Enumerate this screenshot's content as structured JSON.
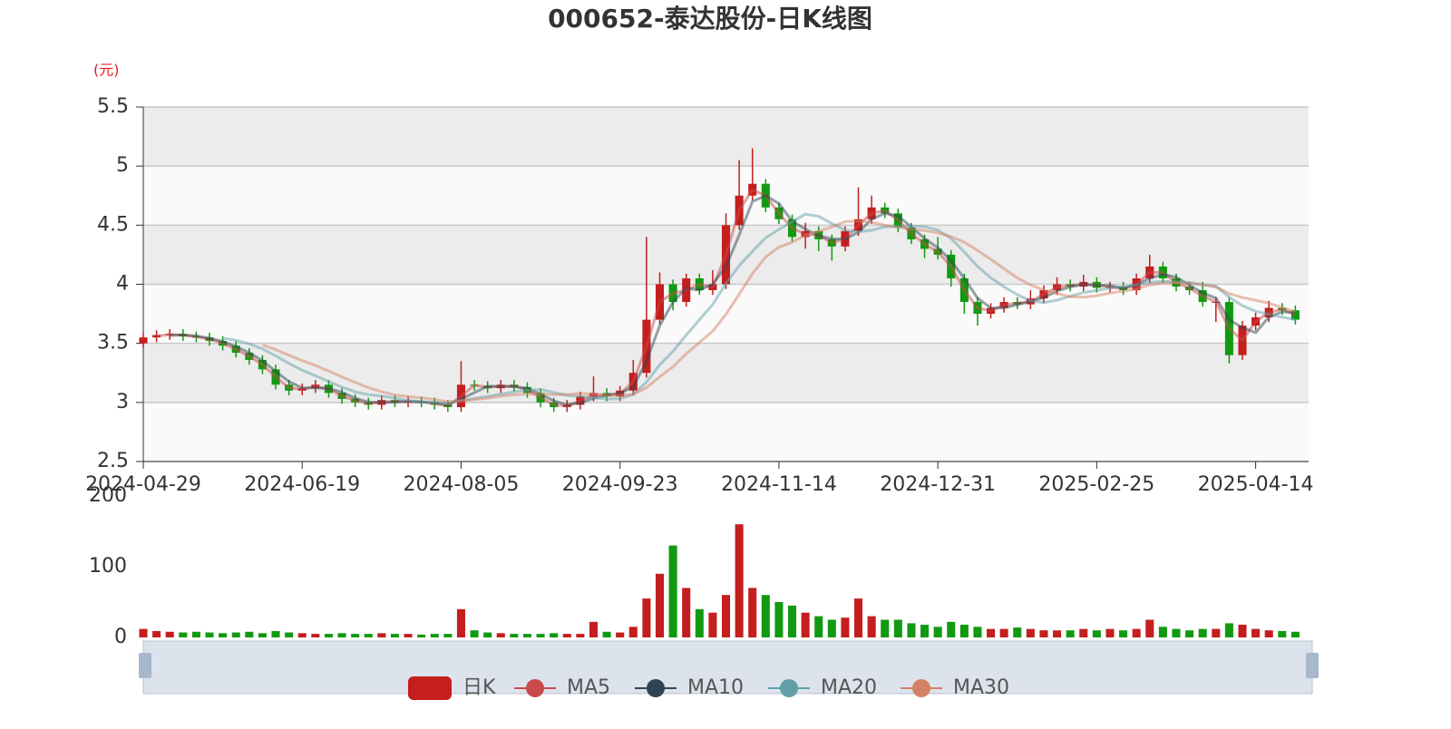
{
  "chart_data": {
    "type": "candlestick",
    "title": "000652-泰达股份-日K线图",
    "y_unit": "(元)",
    "categories": [
      "2024-04-29",
      null,
      null,
      null,
      null,
      null,
      null,
      null,
      null,
      null,
      null,
      null,
      "2024-06-19",
      null,
      null,
      null,
      null,
      null,
      null,
      null,
      null,
      null,
      null,
      null,
      "2024-08-05",
      null,
      null,
      null,
      null,
      null,
      null,
      null,
      null,
      null,
      null,
      null,
      "2024-09-23",
      null,
      null,
      null,
      null,
      null,
      null,
      null,
      null,
      null,
      null,
      null,
      "2024-11-14",
      null,
      null,
      null,
      null,
      null,
      null,
      null,
      null,
      null,
      null,
      null,
      "2024-12-31",
      null,
      null,
      null,
      null,
      null,
      null,
      null,
      null,
      null,
      null,
      null,
      "2025-02-25",
      null,
      null,
      null,
      null,
      null,
      null,
      null,
      null,
      null,
      null,
      null,
      "2025-04-14",
      null,
      null,
      null
    ],
    "ylim": [
      2.5,
      5.5
    ],
    "yticks": [
      2.5,
      3,
      3.5,
      4,
      4.5,
      5,
      5.5
    ],
    "grid": true,
    "series": [
      {
        "name": "日K",
        "color": "#c41e1e",
        "down_color": "#119a11",
        "open": [
          3.5,
          3.55,
          3.57,
          3.58,
          3.56,
          3.55,
          3.52,
          3.48,
          3.42,
          3.36,
          3.28,
          3.15,
          3.1,
          3.12,
          3.15,
          3.08,
          3.03,
          3.0,
          2.98,
          3.02,
          3.0,
          3.01,
          3.0,
          2.98,
          2.96,
          3.15,
          3.14,
          3.12,
          3.15,
          3.13,
          3.08,
          3.0,
          2.96,
          2.98,
          3.05,
          3.08,
          3.05,
          3.1,
          3.25,
          3.7,
          4.0,
          3.85,
          4.05,
          3.95,
          4.0,
          4.5,
          4.75,
          4.85,
          4.65,
          4.55,
          4.4,
          4.45,
          4.38,
          4.32,
          4.45,
          4.55,
          4.65,
          4.6,
          4.48,
          4.38,
          4.3,
          4.25,
          4.05,
          3.85,
          3.75,
          3.8,
          3.85,
          3.83,
          3.88,
          3.95,
          4.0,
          3.98,
          4.02,
          3.97,
          3.98,
          3.95,
          4.05,
          4.15,
          4.05,
          3.98,
          3.95,
          3.85,
          3.85,
          3.4,
          3.65,
          3.72,
          3.8,
          3.78
        ],
        "close": [
          3.55,
          3.57,
          3.58,
          3.56,
          3.55,
          3.52,
          3.48,
          3.42,
          3.36,
          3.28,
          3.15,
          3.1,
          3.12,
          3.15,
          3.08,
          3.03,
          3.0,
          2.98,
          3.02,
          3.0,
          3.01,
          3.0,
          2.98,
          2.96,
          3.15,
          3.14,
          3.12,
          3.15,
          3.13,
          3.08,
          3.0,
          2.96,
          2.98,
          3.05,
          3.08,
          3.05,
          3.1,
          3.25,
          3.7,
          4.0,
          3.85,
          4.05,
          3.95,
          4.0,
          4.5,
          4.75,
          4.85,
          4.65,
          4.55,
          4.4,
          4.45,
          4.38,
          4.32,
          4.45,
          4.55,
          4.65,
          4.6,
          4.48,
          4.38,
          4.3,
          4.25,
          4.05,
          3.85,
          3.75,
          3.8,
          3.85,
          3.83,
          3.88,
          3.95,
          4.0,
          3.98,
          4.02,
          3.97,
          3.98,
          3.95,
          4.05,
          4.15,
          4.05,
          3.98,
          3.95,
          3.85,
          3.85,
          3.4,
          3.65,
          3.72,
          3.8,
          3.78,
          3.7
        ],
        "low": [
          3.46,
          3.51,
          3.53,
          3.52,
          3.51,
          3.48,
          3.44,
          3.38,
          3.32,
          3.24,
          3.11,
          3.06,
          3.06,
          3.08,
          3.04,
          2.99,
          2.96,
          2.94,
          2.94,
          2.96,
          2.96,
          2.96,
          2.94,
          2.92,
          2.92,
          3.1,
          3.08,
          3.08,
          3.09,
          3.04,
          2.96,
          2.92,
          2.92,
          2.94,
          3.01,
          3.01,
          3.01,
          3.06,
          3.21,
          3.66,
          3.78,
          3.81,
          3.91,
          3.91,
          3.96,
          4.46,
          4.71,
          4.61,
          4.51,
          4.36,
          4.3,
          4.28,
          4.2,
          4.28,
          4.41,
          4.51,
          4.56,
          4.44,
          4.34,
          4.22,
          4.21,
          3.98,
          3.75,
          3.65,
          3.71,
          3.76,
          3.79,
          3.79,
          3.84,
          3.91,
          3.94,
          3.94,
          3.93,
          3.93,
          3.91,
          3.91,
          4.01,
          4.01,
          3.94,
          3.91,
          3.81,
          3.68,
          3.33,
          3.36,
          3.61,
          3.68,
          3.74,
          3.66
        ],
        "high": [
          3.59,
          3.61,
          3.62,
          3.62,
          3.6,
          3.59,
          3.56,
          3.52,
          3.46,
          3.4,
          3.32,
          3.19,
          3.16,
          3.19,
          3.19,
          3.12,
          3.07,
          3.04,
          3.06,
          3.06,
          3.05,
          3.05,
          3.04,
          3.02,
          3.35,
          3.19,
          3.18,
          3.19,
          3.19,
          3.17,
          3.12,
          3.04,
          3.02,
          3.09,
          3.22,
          3.12,
          3.14,
          3.36,
          4.4,
          4.1,
          4.04,
          4.09,
          4.09,
          4.12,
          4.6,
          5.05,
          5.15,
          4.89,
          4.69,
          4.59,
          4.52,
          4.49,
          4.42,
          4.49,
          4.82,
          4.75,
          4.69,
          4.64,
          4.52,
          4.42,
          4.4,
          4.29,
          4.09,
          3.89,
          3.84,
          3.89,
          3.89,
          3.95,
          3.99,
          4.06,
          4.04,
          4.08,
          4.06,
          4.02,
          4.02,
          4.09,
          4.25,
          4.19,
          4.09,
          4.02,
          4.02,
          3.89,
          3.89,
          3.69,
          3.76,
          3.86,
          3.84,
          3.82
        ]
      },
      {
        "name": "MA5",
        "color": "#c94a4a"
      },
      {
        "name": "MA10",
        "color": "#2f4554"
      },
      {
        "name": "MA20",
        "color": "#61a0a8"
      },
      {
        "name": "MA30",
        "color": "#d48265"
      }
    ],
    "volume": {
      "ylim": [
        0,
        200
      ],
      "yticks": [
        0,
        100,
        200
      ],
      "values": [
        12,
        9,
        8,
        7,
        8,
        7,
        6,
        7,
        8,
        6,
        9,
        7,
        6,
        5,
        5,
        6,
        5,
        5,
        6,
        5,
        5,
        4,
        5,
        5,
        40,
        10,
        7,
        6,
        5,
        5,
        5,
        6,
        5,
        5,
        22,
        8,
        7,
        15,
        55,
        90,
        130,
        70,
        40,
        35,
        60,
        160,
        70,
        60,
        50,
        45,
        35,
        30,
        25,
        28,
        55,
        30,
        25,
        25,
        20,
        18,
        15,
        22,
        18,
        15,
        12,
        12,
        14,
        12,
        10,
        10,
        10,
        12,
        10,
        12,
        10,
        12,
        25,
        15,
        12,
        10,
        12,
        12,
        20,
        18,
        12,
        10,
        9,
        8
      ]
    }
  }
}
